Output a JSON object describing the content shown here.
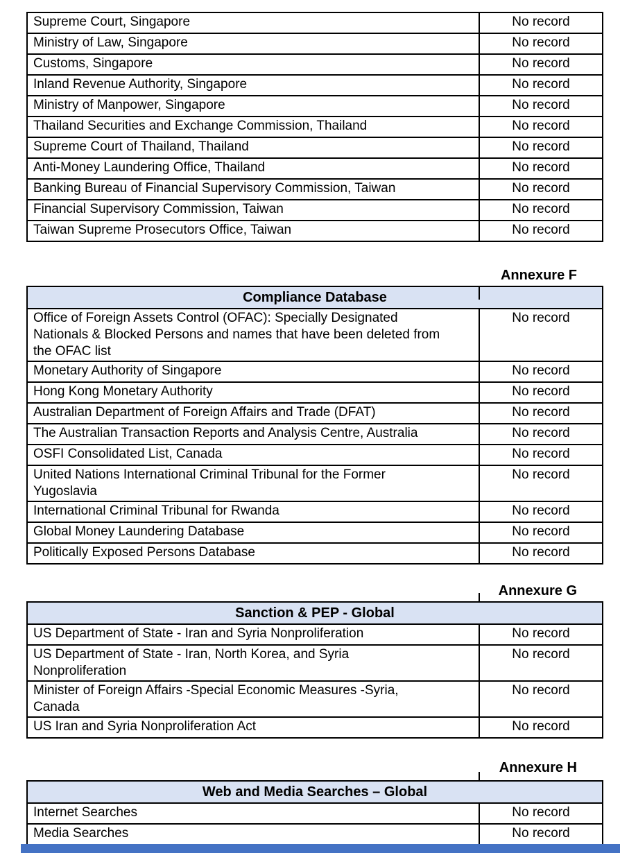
{
  "page": {
    "background": "#ffffff",
    "border_color": "#000000",
    "header_fill": "#D9E2F3",
    "text_color": "#000000"
  },
  "footer_bar": {
    "color": "#4472C4"
  },
  "tables": [
    {
      "annexure": null,
      "title": null,
      "rows": [
        {
          "source": "Supreme Court, Singapore",
          "result": "No record"
        },
        {
          "source": "Ministry of Law, Singapore",
          "result": "No record"
        },
        {
          "source": "Customs, Singapore",
          "result": "No record"
        },
        {
          "source": "Inland Revenue Authority, Singapore",
          "result": "No record"
        },
        {
          "source": "Ministry of Manpower, Singapore",
          "result": "No record"
        },
        {
          "source": "Thailand Securities and Exchange Commission, Thailand",
          "result": "No record"
        },
        {
          "source": "Supreme Court of Thailand, Thailand",
          "result": "No record"
        },
        {
          "source": "Anti-Money Laundering Office, Thailand",
          "result": "No record"
        },
        {
          "source": "Banking Bureau of Financial Supervisory Commission, Taiwan",
          "result": "No record"
        },
        {
          "source": "Financial Supervisory Commission, Taiwan",
          "result": "No record"
        },
        {
          "source": "Taiwan Supreme Prosecutors Office, Taiwan",
          "result": "No record"
        }
      ]
    },
    {
      "annexure": "Annexure F",
      "title": "Compliance Database",
      "rows": [
        {
          "source": "Office of Foreign Assets Control (OFAC): Specially Designated\nNationals & Blocked Persons and names that have been deleted from\nthe OFAC list",
          "result": "No record"
        },
        {
          "source": "Monetary Authority of Singapore",
          "result": "No record"
        },
        {
          "source": "Hong Kong Monetary Authority",
          "result": "No record"
        },
        {
          "source": "Australian Department of Foreign Affairs and Trade (DFAT)",
          "result": "No record"
        },
        {
          "source": "The Australian Transaction Reports and Analysis Centre, Australia",
          "result": "No record"
        },
        {
          "source": "OSFI Consolidated List, Canada",
          "result": "No record"
        },
        {
          "source": "United Nations International Criminal Tribunal for the Former\nYugoslavia",
          "result": "No record"
        },
        {
          "source": "International Criminal Tribunal for Rwanda",
          "result": "No record"
        },
        {
          "source": "Global Money Laundering Database",
          "result": "No record"
        },
        {
          "source": "Politically Exposed Persons Database",
          "result": "No record"
        }
      ]
    },
    {
      "annexure": "Annexure G",
      "title": "Sanction & PEP - Global",
      "rows": [
        {
          "source": "US Department of State - Iran and Syria Nonproliferation",
          "result": "No record"
        },
        {
          "source": "US Department of State - Iran, North Korea, and Syria\nNonproliferation",
          "result": "No record"
        },
        {
          "source": "Minister of Foreign Affairs -Special Economic Measures -Syria,\nCanada",
          "result": "No record"
        },
        {
          "source": "US Iran and Syria Nonproliferation Act",
          "result": "No record"
        }
      ]
    },
    {
      "annexure": "Annexure H",
      "title": "Web and Media Searches – Global",
      "rows": [
        {
          "source": "Internet Searches",
          "result": "No record"
        },
        {
          "source": "Media Searches",
          "result": "No record"
        }
      ]
    }
  ]
}
